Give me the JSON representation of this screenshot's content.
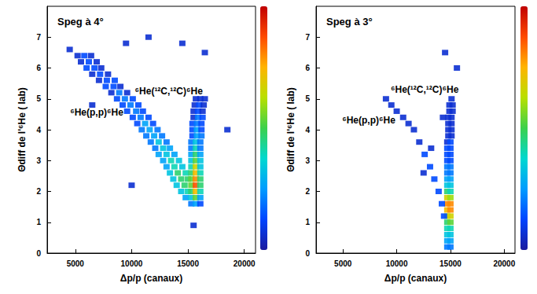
{
  "chart_data": [
    {
      "type": "scatter",
      "title": "Speg à 4°",
      "xlabel": "Δp/p (canaux)",
      "ylabel": "Θdiff de l'⁶He ( lab)",
      "xlim": [
        2500,
        21000
      ],
      "xticks": [
        5000,
        10000,
        15000,
        20000
      ],
      "ylim": [
        0,
        8
      ],
      "yticks": [
        0,
        1,
        2,
        3,
        4,
        5,
        6,
        7
      ],
      "grid": false,
      "marker": "square",
      "color_range": [
        0,
        15
      ],
      "annotations": [
        {
          "text": "⁶He(p,p)⁶He",
          "x": 6900,
          "y": 4.55
        },
        {
          "text": "⁶He(¹²C,¹²C)⁶He",
          "x": 13300,
          "y": 5.25
        }
      ],
      "points": [
        [
          5200,
          6.4,
          1
        ],
        [
          5800,
          6.4,
          2
        ],
        [
          6400,
          6.4,
          1
        ],
        [
          5500,
          6.2,
          1
        ],
        [
          6200,
          6.2,
          2
        ],
        [
          6900,
          6.2,
          1
        ],
        [
          6000,
          6.0,
          2
        ],
        [
          6700,
          6.0,
          2
        ],
        [
          7300,
          6.0,
          1
        ],
        [
          6500,
          5.8,
          1
        ],
        [
          7200,
          5.8,
          2
        ],
        [
          7900,
          5.8,
          1
        ],
        [
          7100,
          5.6,
          1
        ],
        [
          7800,
          5.6,
          2
        ],
        [
          8500,
          5.6,
          2
        ],
        [
          7700,
          5.4,
          2
        ],
        [
          8400,
          5.4,
          2
        ],
        [
          9000,
          5.4,
          1
        ],
        [
          8200,
          5.2,
          1
        ],
        [
          8900,
          5.2,
          3
        ],
        [
          9600,
          5.2,
          1
        ],
        [
          8700,
          5.0,
          2
        ],
        [
          9400,
          5.0,
          3
        ],
        [
          10100,
          5.0,
          2
        ],
        [
          9200,
          4.8,
          2
        ],
        [
          9900,
          4.8,
          3
        ],
        [
          10600,
          4.8,
          2
        ],
        [
          9600,
          4.6,
          2
        ],
        [
          10400,
          4.6,
          3
        ],
        [
          11000,
          4.6,
          2
        ],
        [
          10100,
          4.4,
          2
        ],
        [
          10800,
          4.4,
          3
        ],
        [
          11500,
          4.4,
          2
        ],
        [
          10500,
          4.2,
          2
        ],
        [
          11200,
          4.2,
          4
        ],
        [
          11900,
          4.2,
          2
        ],
        [
          10900,
          4.0,
          3
        ],
        [
          11600,
          4.0,
          4
        ],
        [
          12300,
          4.0,
          3
        ],
        [
          11300,
          3.8,
          3
        ],
        [
          12000,
          3.8,
          4
        ],
        [
          12700,
          3.8,
          3
        ],
        [
          11700,
          3.6,
          3
        ],
        [
          12400,
          3.6,
          5
        ],
        [
          13100,
          3.6,
          3
        ],
        [
          12100,
          3.4,
          3
        ],
        [
          12800,
          3.4,
          5
        ],
        [
          13400,
          3.4,
          4
        ],
        [
          12400,
          3.2,
          4
        ],
        [
          13100,
          3.2,
          5
        ],
        [
          13800,
          3.2,
          4
        ],
        [
          12800,
          3.0,
          4
        ],
        [
          13500,
          3.0,
          6
        ],
        [
          14200,
          3.0,
          5
        ],
        [
          13100,
          2.8,
          4
        ],
        [
          13800,
          2.8,
          6
        ],
        [
          14500,
          2.8,
          5
        ],
        [
          13400,
          2.6,
          5
        ],
        [
          14100,
          2.6,
          7
        ],
        [
          14800,
          2.6,
          6
        ],
        [
          13700,
          2.4,
          5
        ],
        [
          14400,
          2.4,
          7
        ],
        [
          15000,
          2.4,
          7
        ],
        [
          14000,
          2.2,
          5
        ],
        [
          14700,
          2.2,
          7
        ],
        [
          14400,
          2.0,
          5
        ],
        [
          15000,
          2.0,
          6
        ],
        [
          14800,
          1.8,
          4
        ],
        [
          15300,
          1.6,
          3
        ],
        [
          15700,
          1.6,
          4
        ],
        [
          16100,
          1.6,
          2
        ],
        [
          15300,
          1.8,
          5
        ],
        [
          15700,
          1.8,
          8
        ],
        [
          16100,
          1.8,
          4
        ],
        [
          15300,
          2.0,
          7
        ],
        [
          15700,
          2.0,
          11
        ],
        [
          16100,
          2.0,
          6
        ],
        [
          15300,
          2.2,
          8
        ],
        [
          15700,
          2.2,
          13
        ],
        [
          16100,
          2.2,
          7
        ],
        [
          15300,
          2.4,
          8
        ],
        [
          15700,
          2.4,
          12
        ],
        [
          16100,
          2.4,
          7
        ],
        [
          15300,
          2.6,
          7
        ],
        [
          15700,
          2.6,
          11
        ],
        [
          16100,
          2.6,
          6
        ],
        [
          15300,
          2.8,
          6
        ],
        [
          15700,
          2.8,
          10
        ],
        [
          16100,
          2.8,
          5
        ],
        [
          15300,
          3.0,
          5
        ],
        [
          15700,
          3.0,
          8
        ],
        [
          16100,
          3.0,
          5
        ],
        [
          15300,
          3.2,
          4
        ],
        [
          15700,
          3.2,
          7
        ],
        [
          16100,
          3.2,
          4
        ],
        [
          15300,
          3.4,
          3
        ],
        [
          15700,
          3.4,
          6
        ],
        [
          16100,
          3.4,
          3
        ],
        [
          15300,
          3.6,
          3
        ],
        [
          15700,
          3.6,
          5
        ],
        [
          16100,
          3.6,
          3
        ],
        [
          15400,
          3.8,
          2
        ],
        [
          15800,
          3.8,
          4
        ],
        [
          16200,
          3.8,
          3
        ],
        [
          15400,
          4.0,
          2
        ],
        [
          15800,
          4.0,
          4
        ],
        [
          16200,
          4.0,
          2
        ],
        [
          15400,
          4.2,
          2
        ],
        [
          15800,
          4.2,
          3
        ],
        [
          16200,
          4.2,
          2
        ],
        [
          15500,
          4.4,
          1
        ],
        [
          15900,
          4.4,
          3
        ],
        [
          16300,
          4.4,
          2
        ],
        [
          15500,
          4.6,
          1
        ],
        [
          15900,
          4.6,
          2
        ],
        [
          16300,
          4.6,
          1
        ],
        [
          15600,
          4.8,
          1
        ],
        [
          16000,
          4.8,
          2
        ],
        [
          16400,
          4.8,
          1
        ],
        [
          15700,
          5.0,
          1
        ],
        [
          16100,
          5.0,
          1
        ],
        [
          16500,
          5.0,
          1
        ],
        [
          4500,
          6.6,
          1
        ],
        [
          11500,
          7.0,
          1
        ],
        [
          14500,
          6.8,
          1
        ],
        [
          16500,
          6.5,
          1
        ],
        [
          15500,
          0.9,
          1
        ],
        [
          6500,
          4.8,
          1
        ],
        [
          10000,
          2.2,
          1
        ],
        [
          18500,
          4.0,
          1
        ],
        [
          9500,
          6.8,
          1
        ]
      ]
    },
    {
      "type": "scatter",
      "title": "Speg à 3°",
      "xlabel": "Δp/p (canaux)",
      "ylabel": "Θdiff de l'⁶He ( lab)",
      "xlim": [
        2500,
        21000
      ],
      "xticks": [
        5000,
        10000,
        15000,
        20000
      ],
      "ylim": [
        0,
        8
      ],
      "yticks": [
        0,
        1,
        2,
        3,
        4,
        5,
        6,
        7
      ],
      "grid": false,
      "marker": "square",
      "color_range": [
        0,
        15
      ],
      "annotations": [
        {
          "text": "⁶He(p,p)⁶He",
          "x": 7400,
          "y": 4.3
        },
        {
          "text": "⁶He(¹²C,¹²C)⁶He",
          "x": 12600,
          "y": 5.3
        }
      ],
      "points": [
        [
          14700,
          0.2,
          3
        ],
        [
          15000,
          0.2,
          3
        ],
        [
          14700,
          0.4,
          4
        ],
        [
          15000,
          0.4,
          4
        ],
        [
          14700,
          0.6,
          5
        ],
        [
          15000,
          0.6,
          5
        ],
        [
          14700,
          0.8,
          6
        ],
        [
          15000,
          0.8,
          6
        ],
        [
          14700,
          1.0,
          7
        ],
        [
          15000,
          1.0,
          8
        ],
        [
          14700,
          1.2,
          9
        ],
        [
          15000,
          1.2,
          10
        ],
        [
          14700,
          1.4,
          11
        ],
        [
          15000,
          1.4,
          12
        ],
        [
          14700,
          1.6,
          12
        ],
        [
          15000,
          1.6,
          12
        ],
        [
          14700,
          1.8,
          10
        ],
        [
          15000,
          1.8,
          9
        ],
        [
          14700,
          2.0,
          7
        ],
        [
          15000,
          2.0,
          6
        ],
        [
          14700,
          2.2,
          5
        ],
        [
          15000,
          2.2,
          5
        ],
        [
          14700,
          2.4,
          4
        ],
        [
          15000,
          2.4,
          4
        ],
        [
          14700,
          2.6,
          3
        ],
        [
          15000,
          2.6,
          3
        ],
        [
          14700,
          2.8,
          3
        ],
        [
          15000,
          2.8,
          3
        ],
        [
          14700,
          3.0,
          2
        ],
        [
          15000,
          3.0,
          2
        ],
        [
          14700,
          3.2,
          2
        ],
        [
          15000,
          3.2,
          2
        ],
        [
          14700,
          3.4,
          2
        ],
        [
          15000,
          3.4,
          2
        ],
        [
          14700,
          3.6,
          1
        ],
        [
          15000,
          3.6,
          2
        ],
        [
          14800,
          3.8,
          1
        ],
        [
          15100,
          3.8,
          1
        ],
        [
          14800,
          4.0,
          1
        ],
        [
          15100,
          4.0,
          1
        ],
        [
          14800,
          4.2,
          1
        ],
        [
          15100,
          4.2,
          1
        ],
        [
          14800,
          4.4,
          1
        ],
        [
          15100,
          4.4,
          1
        ],
        [
          14900,
          4.6,
          1
        ],
        [
          15200,
          4.6,
          1
        ],
        [
          14900,
          4.8,
          1
        ],
        [
          15200,
          4.8,
          1
        ],
        [
          15100,
          5.0,
          1
        ],
        [
          9000,
          5.0,
          1
        ],
        [
          9500,
          4.8,
          1
        ],
        [
          10000,
          4.6,
          1
        ],
        [
          10600,
          4.4,
          1
        ],
        [
          11100,
          4.2,
          1
        ],
        [
          11600,
          4.0,
          1
        ],
        [
          12100,
          3.6,
          1
        ],
        [
          12600,
          3.2,
          2
        ],
        [
          13100,
          2.8,
          2
        ],
        [
          13500,
          2.4,
          2
        ],
        [
          13900,
          2.0,
          2
        ],
        [
          14200,
          1.6,
          2
        ],
        [
          14400,
          1.2,
          2
        ],
        [
          13200,
          3.4,
          1
        ],
        [
          12500,
          2.6,
          1
        ],
        [
          14300,
          4.4,
          1
        ],
        [
          15600,
          6.0,
          1
        ],
        [
          14500,
          6.5,
          1
        ]
      ]
    }
  ]
}
